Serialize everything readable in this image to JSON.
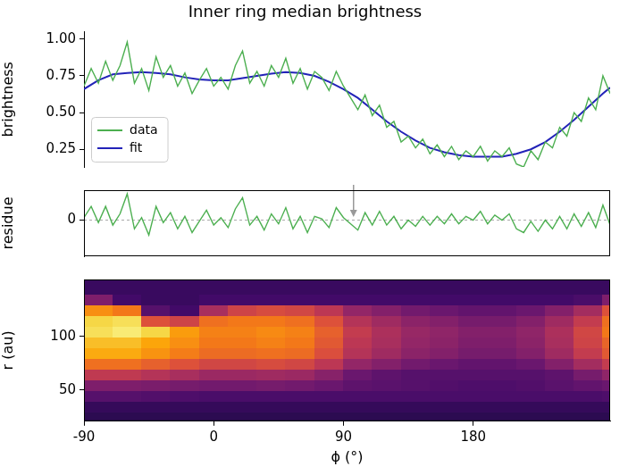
{
  "chart_data": [
    {
      "type": "line",
      "title": "Inner ring median brightness",
      "ylabel": "brightness",
      "xlim": [
        -90,
        275
      ],
      "ylim": [
        0.13,
        1.05
      ],
      "yticks": [
        {
          "value": 0.25,
          "label": "0.25"
        },
        {
          "value": 0.5,
          "label": "0.50"
        },
        {
          "value": 0.75,
          "label": "0.75"
        },
        {
          "value": 1,
          "label": "1.00"
        }
      ],
      "grid": false,
      "tick_labels": "y",
      "legend": "lower left",
      "series": [
        {
          "name": "data",
          "color": "#4caf50",
          "x": [
            -90,
            -85,
            -80,
            -75,
            -70,
            -65,
            -60,
            -55,
            -50,
            -45,
            -40,
            -35,
            -30,
            -25,
            -20,
            -15,
            -10,
            -5,
            0,
            5,
            10,
            15,
            20,
            25,
            30,
            35,
            40,
            45,
            50,
            55,
            60,
            65,
            70,
            75,
            80,
            85,
            90,
            95,
            100,
            105,
            110,
            115,
            120,
            125,
            130,
            135,
            140,
            145,
            150,
            155,
            160,
            165,
            170,
            175,
            180,
            185,
            190,
            195,
            200,
            205,
            210,
            215,
            220,
            225,
            230,
            235,
            240,
            245,
            250,
            255,
            260,
            265,
            270,
            275
          ],
          "values": [
            0.68,
            0.8,
            0.7,
            0.85,
            0.72,
            0.82,
            0.98,
            0.7,
            0.8,
            0.65,
            0.88,
            0.74,
            0.82,
            0.68,
            0.77,
            0.63,
            0.72,
            0.8,
            0.68,
            0.74,
            0.66,
            0.82,
            0.92,
            0.7,
            0.78,
            0.68,
            0.82,
            0.74,
            0.87,
            0.7,
            0.8,
            0.66,
            0.78,
            0.74,
            0.65,
            0.78,
            0.68,
            0.6,
            0.52,
            0.62,
            0.48,
            0.55,
            0.4,
            0.44,
            0.3,
            0.34,
            0.26,
            0.32,
            0.22,
            0.28,
            0.2,
            0.27,
            0.18,
            0.24,
            0.2,
            0.27,
            0.17,
            0.24,
            0.2,
            0.26,
            0.15,
            0.13,
            0.24,
            0.18,
            0.3,
            0.26,
            0.4,
            0.34,
            0.5,
            0.44,
            0.6,
            0.52,
            0.75,
            0.63
          ]
        },
        {
          "name": "fit",
          "color": "#2323b8",
          "x": [
            -90,
            -80,
            -70,
            -60,
            -50,
            -40,
            -30,
            -20,
            -10,
            0,
            10,
            20,
            30,
            40,
            50,
            60,
            70,
            80,
            90,
            100,
            110,
            120,
            130,
            140,
            150,
            160,
            170,
            180,
            190,
            200,
            210,
            220,
            230,
            240,
            250,
            260,
            270,
            275
          ],
          "values": [
            0.66,
            0.72,
            0.76,
            0.77,
            0.775,
            0.77,
            0.76,
            0.74,
            0.725,
            0.72,
            0.72,
            0.735,
            0.75,
            0.765,
            0.775,
            0.77,
            0.75,
            0.71,
            0.66,
            0.6,
            0.52,
            0.44,
            0.37,
            0.31,
            0.26,
            0.23,
            0.21,
            0.2,
            0.2,
            0.2,
            0.22,
            0.25,
            0.3,
            0.37,
            0.45,
            0.54,
            0.63,
            0.67
          ]
        }
      ]
    },
    {
      "type": "line",
      "ylabel": "residue",
      "xlim": [
        -90,
        275
      ],
      "ylim": [
        -0.29,
        0.24
      ],
      "yticks": [
        0
      ],
      "grid": false,
      "tick_labels": "y",
      "reference_line": 0,
      "arrow_x": 97,
      "series": [
        {
          "color": "#4caf50",
          "x": [
            -90,
            -85,
            -80,
            -75,
            -70,
            -65,
            -60,
            -55,
            -50,
            -45,
            -40,
            -35,
            -30,
            -25,
            -20,
            -15,
            -10,
            -5,
            0,
            5,
            10,
            15,
            20,
            25,
            30,
            35,
            40,
            45,
            50,
            55,
            60,
            65,
            70,
            75,
            80,
            85,
            90,
            95,
            100,
            105,
            110,
            115,
            120,
            125,
            130,
            135,
            140,
            145,
            150,
            155,
            160,
            165,
            170,
            175,
            180,
            185,
            190,
            195,
            200,
            205,
            210,
            215,
            220,
            225,
            230,
            235,
            240,
            245,
            250,
            255,
            260,
            265,
            270,
            275
          ],
          "values": [
            0.02,
            0.11,
            -0.02,
            0.11,
            -0.04,
            0.05,
            0.21,
            -0.07,
            0.02,
            -0.12,
            0.11,
            -0.02,
            0.06,
            -0.07,
            0.03,
            -0.1,
            -0.01,
            0.08,
            -0.04,
            0.02,
            -0.06,
            0.09,
            0.18,
            -0.04,
            0.03,
            -0.08,
            0.05,
            -0.03,
            0.1,
            -0.07,
            0.03,
            -0.1,
            0.03,
            0.01,
            -0.06,
            0.1,
            0.02,
            -0.03,
            -0.08,
            0.06,
            -0.04,
            0.07,
            -0.04,
            0.03,
            -0.07,
            0,
            -0.05,
            0.03,
            -0.04,
            0.03,
            -0.03,
            0.05,
            -0.03,
            0.03,
            0,
            0.07,
            -0.03,
            0.04,
            0,
            0.05,
            -0.07,
            -0.1,
            -0.01,
            -0.09,
            0,
            -0.07,
            0.03,
            -0.07,
            0.05,
            -0.05,
            0.06,
            -0.06,
            0.12,
            -0.04
          ]
        }
      ]
    },
    {
      "type": "heatmap",
      "xlabel": "ϕ (°)",
      "ylabel": "r (au)",
      "xlim": [
        -90,
        275
      ],
      "ylim": [
        21,
        153
      ],
      "xticks": [
        -90,
        0,
        90,
        180
      ],
      "yticks": [
        50,
        100
      ],
      "grid": false,
      "tick_labels": true,
      "zlim": [
        0,
        1
      ],
      "phi_edges": [
        -90,
        -70,
        -50,
        -30,
        -10,
        10,
        30,
        50,
        70,
        90,
        110,
        130,
        150,
        170,
        190,
        210,
        230,
        250,
        270,
        275
      ],
      "r_edges": [
        21,
        30,
        40,
        50,
        60,
        70,
        80,
        90,
        100,
        110,
        120,
        130,
        140,
        150,
        153
      ],
      "cells": [
        [
          0.15,
          0.15,
          0.15,
          0.15,
          0.15,
          0.15,
          0.15,
          0.15,
          0.15,
          0.15,
          0.15,
          0.15,
          0.15,
          0.15,
          0.15,
          0.15,
          0.15,
          0.15,
          0.15
        ],
        [
          0.17,
          0.17,
          0.17,
          0.17,
          0.17,
          0.17,
          0.17,
          0.17,
          0.17,
          0.17,
          0.17,
          0.17,
          0.17,
          0.17,
          0.17,
          0.17,
          0.17,
          0.17,
          0.17
        ],
        [
          0.25,
          0.25,
          0.24,
          0.23,
          0.22,
          0.22,
          0.22,
          0.22,
          0.22,
          0.22,
          0.22,
          0.22,
          0.22,
          0.22,
          0.22,
          0.22,
          0.22,
          0.22,
          0.23
        ],
        [
          0.35,
          0.35,
          0.34,
          0.33,
          0.32,
          0.32,
          0.33,
          0.32,
          0.3,
          0.27,
          0.26,
          0.25,
          0.24,
          0.23,
          0.23,
          0.24,
          0.26,
          0.28,
          0.3
        ],
        [
          0.51,
          0.51,
          0.48,
          0.45,
          0.42,
          0.42,
          0.43,
          0.42,
          0.37,
          0.3,
          0.27,
          0.25,
          0.25,
          0.25,
          0.25,
          0.25,
          0.27,
          0.33,
          0.39
        ],
        [
          0.68,
          0.68,
          0.64,
          0.6,
          0.56,
          0.56,
          0.58,
          0.56,
          0.5,
          0.4,
          0.36,
          0.32,
          0.3,
          0.28,
          0.28,
          0.3,
          0.36,
          0.44,
          0.52
        ],
        [
          0.81,
          0.81,
          0.76,
          0.71,
          0.67,
          0.67,
          0.68,
          0.67,
          0.59,
          0.48,
          0.43,
          0.38,
          0.36,
          0.33,
          0.33,
          0.36,
          0.43,
          0.52,
          0.62
        ],
        [
          0.85,
          0.85,
          0.8,
          0.75,
          0.7,
          0.7,
          0.72,
          0.7,
          0.62,
          0.5,
          0.45,
          0.4,
          0.38,
          0.35,
          0.35,
          0.38,
          0.45,
          0.55,
          0.65
        ],
        [
          0.92,
          0.95,
          0.9,
          0.78,
          0.72,
          0.72,
          0.74,
          0.72,
          0.64,
          0.52,
          0.46,
          0.41,
          0.39,
          0.36,
          0.36,
          0.39,
          0.46,
          0.56,
          0.7
        ],
        [
          0.9,
          0.92,
          0.6,
          0.55,
          0.68,
          0.7,
          0.7,
          0.68,
          0.6,
          0.48,
          0.43,
          0.38,
          0.36,
          0.33,
          0.33,
          0.36,
          0.43,
          0.52,
          0.68
        ],
        [
          0.75,
          0.7,
          0.25,
          0.2,
          0.45,
          0.55,
          0.58,
          0.56,
          0.5,
          0.4,
          0.36,
          0.32,
          0.3,
          0.28,
          0.28,
          0.3,
          0.36,
          0.44,
          0.6
        ],
        [
          0.35,
          0.2,
          0.18,
          0.18,
          0.2,
          0.2,
          0.2,
          0.2,
          0.2,
          0.2,
          0.2,
          0.2,
          0.2,
          0.2,
          0.2,
          0.2,
          0.2,
          0.22,
          0.35
        ],
        [
          0.18,
          0.18,
          0.18,
          0.18,
          0.18,
          0.18,
          0.18,
          0.18,
          0.18,
          0.18,
          0.18,
          0.18,
          0.18,
          0.18,
          0.18,
          0.18,
          0.18,
          0.18,
          0.18
        ],
        [
          0.18,
          0.18,
          0.18,
          0.18,
          0.18,
          0.18,
          0.18,
          0.18,
          0.18,
          0.18,
          0.18,
          0.18,
          0.18,
          0.18,
          0.18,
          0.18,
          0.18,
          0.18,
          0.18
        ]
      ]
    }
  ]
}
